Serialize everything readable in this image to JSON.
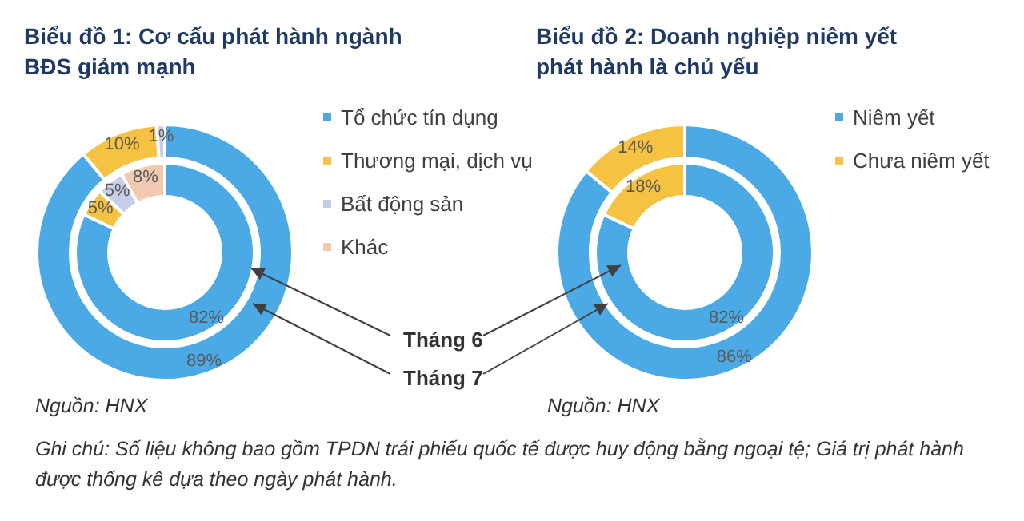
{
  "chart_data": [
    {
      "type": "donut",
      "title": "Biểu đồ 1: Cơ cấu phát hành ngành BĐS giảm mạnh",
      "categories": [
        "Tổ chức tín dụng",
        "Thương mại, dịch vụ",
        "Bất động sản",
        "Khác"
      ],
      "colors": [
        "#4baae6",
        "#f5c242",
        "#c5cde8",
        "#f2c9b1"
      ],
      "legend": "right",
      "series": [
        {
          "name": "Tháng 6",
          "values": [
            82,
            5,
            5,
            8
          ],
          "value_labels": [
            "82%",
            "5%",
            "5%",
            "8%"
          ]
        },
        {
          "name": "Tháng 7",
          "values": [
            89,
            10,
            1,
            0
          ],
          "value_labels": [
            "89%",
            "10%",
            "1%",
            null
          ]
        }
      ],
      "annotations": [
        "Nguồn: HNX",
        "Ghi chú: Số liệu không bao gồm TPDN trái phiếu quốc tế được huy động bằng ngoại tệ; Giá trị phát hành được thống kê dựa theo ngày phát hành."
      ]
    },
    {
      "type": "donut",
      "title": "Biểu đồ 2: Doanh nghiệp niêm yết phát hành là chủ yếu",
      "categories": [
        "Niêm yết",
        "Chưa niêm yết"
      ],
      "colors": [
        "#4baae6",
        "#f5c242"
      ],
      "legend": "right",
      "series": [
        {
          "values": [
            82,
            18
          ],
          "value_labels": [
            "82%",
            "18%"
          ]
        },
        {
          "values": [
            86,
            14
          ],
          "value_labels": [
            "86%",
            "14%"
          ]
        }
      ],
      "annotations": [
        "Nguồn: HNX"
      ]
    }
  ]
}
